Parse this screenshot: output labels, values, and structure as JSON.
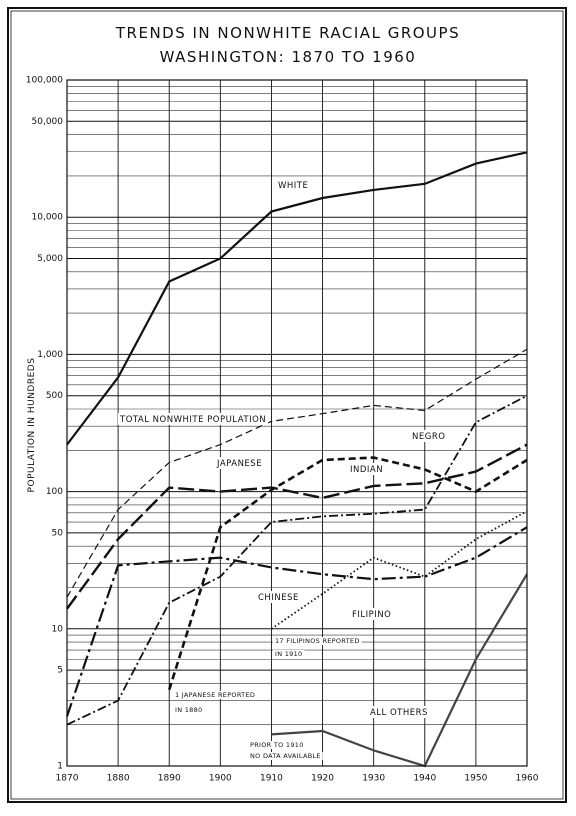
{
  "chart_data": {
    "type": "line",
    "title": "TRENDS IN NONWHITE RACIAL GROUPS",
    "subtitle": "WASHINGTON:  1870  TO 1960",
    "y_label": "POPULATION IN HUNDREDS",
    "x": [
      1870,
      1880,
      1890,
      1900,
      1910,
      1920,
      1930,
      1940,
      1950,
      1960
    ],
    "xlim": [
      1870,
      1960
    ],
    "xticks": [
      1870,
      1880,
      1890,
      1900,
      1910,
      1920,
      1930,
      1940,
      1950,
      1960
    ],
    "ylim": [
      1,
      100000
    ],
    "log_scale": true,
    "grid": true,
    "yticks": [
      1,
      5,
      10,
      50,
      100,
      500,
      {
        "value": 1000,
        "label": "1,000"
      },
      {
        "value": 5000,
        "label": "5,000"
      },
      {
        "value": 10000,
        "label": "10,000"
      },
      {
        "value": 50000,
        "label": "50,000"
      },
      {
        "value": 100000,
        "label": "100,000"
      }
    ],
    "yminor": [
      2,
      3,
      4,
      6,
      7,
      8,
      9,
      20,
      30,
      40,
      60,
      70,
      80,
      90,
      200,
      300,
      400,
      600,
      700,
      800,
      900,
      2000,
      3000,
      4000,
      6000,
      7000,
      8000,
      9000,
      20000,
      30000,
      40000,
      60000,
      70000,
      80000,
      90000
    ],
    "series": [
      {
        "name": "WHITE",
        "color": "#111111",
        "values": [
          220,
          680,
          3400,
          5000,
          11000,
          13800,
          15800,
          17500,
          24600,
          29700
        ]
      },
      {
        "name": "TOTAL NONWHITE POPULATION",
        "color": "#111111",
        "values": [
          17,
          74,
          163,
          220,
          325,
          370,
          425,
          390,
          660,
          1090
        ]
      },
      {
        "name": "JAPANESE",
        "color": "#111111",
        "values": [
          null,
          null,
          3.6,
          55,
          103,
          170,
          177,
          145,
          100,
          170
        ]
      },
      {
        "name": "INDIAN",
        "color": "#111111",
        "values": [
          14,
          45,
          107,
          100,
          107,
          90,
          110,
          115,
          140,
          220
        ]
      },
      {
        "name": "NEGRO",
        "color": "#111111",
        "values": [
          2,
          3,
          15.5,
          24,
          60,
          66,
          69,
          74,
          320,
          500
        ]
      },
      {
        "name": "CHINESE",
        "color": "#111111",
        "values": [
          2.3,
          29,
          31,
          33,
          28,
          25,
          23,
          24,
          33,
          55
        ]
      },
      {
        "name": "FILIPINO",
        "color": "#111111",
        "values": [
          null,
          null,
          null,
          null,
          10,
          18,
          33,
          24,
          45,
          72
        ]
      },
      {
        "name": "ALL OTHERS",
        "color": "#444444",
        "values": [
          null,
          null,
          null,
          null,
          1.7,
          1.8,
          1.3,
          1,
          6,
          25
        ]
      }
    ],
    "annotations": [
      "17 FILIPINOS REPORTED",
      "IN 1910",
      "1 JAPANESE REPORTED",
      "IN 1880",
      "PRIOR TO 1910",
      "NO DATA AVAILABLE"
    ]
  }
}
